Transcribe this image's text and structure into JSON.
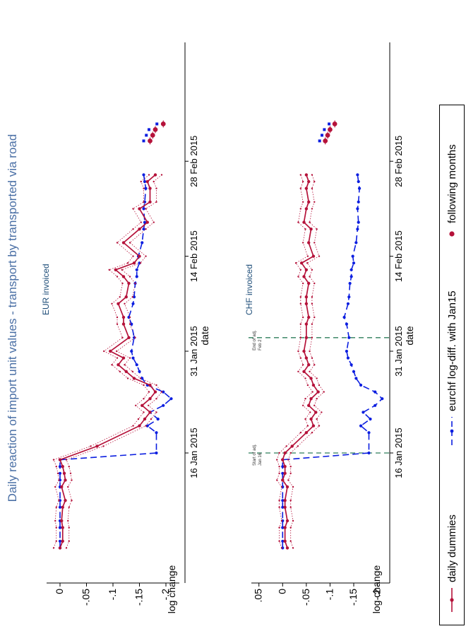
{
  "title": "Daily reaction of import unit values - transport by transported via road",
  "panels": [
    {
      "subtitle": "EUR invoiced",
      "ylabel": "log change",
      "xlabel": "date"
    },
    {
      "subtitle": "CHF invoiced",
      "ylabel": "log change",
      "xlabel": "date",
      "annotations": [
        {
          "lines": [
            "Start of adj.",
            "Jan 16"
          ]
        },
        {
          "lines": [
            "End of adj.",
            "Feb 2"
          ]
        }
      ]
    }
  ],
  "legend": {
    "daily": "daily dummies",
    "eurchf": "eurchf log-diff. with Jan15",
    "following": "following months"
  },
  "colors": {
    "daily": "#b5123a",
    "eurchf": "#0b1ee0",
    "vline": "#2e7d5b",
    "title": "#4a6fa5"
  },
  "chart_data": [
    {
      "type": "line",
      "title": "EUR invoiced",
      "xlabel": "date",
      "ylabel": "log change",
      "x_ticks": [
        "16 Jan 2015",
        "31 Jan 2015",
        "14 Feb 2015",
        "28 Feb 2015"
      ],
      "y_ticks": [
        "0",
        "-.05",
        "-.1",
        "-.15",
        "-.2"
      ],
      "ylim": [
        0.02,
        -0.22
      ],
      "x_range_days": [
        1,
        57
      ],
      "x_reference": "1 Jan 2015 = day 1",
      "series": [
        {
          "name": "daily dummies",
          "x": [
            2,
            3,
            5,
            6,
            8,
            9,
            11,
            12,
            13,
            14,
            15,
            17,
            20,
            21,
            22,
            23,
            24,
            25,
            26,
            27,
            28,
            29,
            30,
            31,
            33,
            35,
            36,
            38,
            39,
            41,
            42,
            43,
            44,
            45,
            47,
            49,
            50,
            52,
            53,
            55,
            56,
            57
          ],
          "values": [
            0.0,
            -0.005,
            -0.005,
            -0.003,
            -0.005,
            -0.01,
            -0.003,
            -0.01,
            -0.008,
            -0.005,
            0.0,
            -0.07,
            -0.15,
            -0.16,
            -0.17,
            -0.155,
            -0.17,
            -0.18,
            -0.17,
            -0.14,
            -0.125,
            -0.11,
            -0.12,
            -0.095,
            -0.13,
            -0.12,
            -0.12,
            -0.11,
            -0.125,
            -0.13,
            -0.12,
            -0.105,
            -0.14,
            -0.15,
            -0.12,
            -0.15,
            -0.165,
            -0.15,
            -0.17,
            -0.17,
            -0.165,
            -0.18
          ]
        },
        {
          "name": "eurchf log-diff. with Jan15",
          "x": [
            2,
            3,
            5,
            6,
            8,
            9,
            11,
            12,
            13,
            14,
            15,
            16,
            19,
            20,
            21,
            22,
            23,
            24,
            25,
            26,
            27,
            28,
            29,
            30,
            31,
            33,
            35,
            36,
            38,
            39,
            41,
            42,
            43,
            44,
            45,
            47,
            49,
            50,
            52,
            53,
            55,
            56,
            57
          ],
          "values": [
            0.0,
            0.0,
            0.0,
            0.0,
            0.0,
            0.0,
            0.0,
            0.0,
            0.0,
            0.0,
            0.0,
            -0.182,
            -0.182,
            -0.165,
            -0.185,
            -0.17,
            -0.195,
            -0.21,
            -0.195,
            -0.165,
            -0.155,
            -0.15,
            -0.145,
            -0.138,
            -0.135,
            -0.14,
            -0.135,
            -0.13,
            -0.138,
            -0.14,
            -0.142,
            -0.145,
            -0.145,
            -0.15,
            -0.148,
            -0.155,
            -0.158,
            -0.16,
            -0.158,
            -0.16,
            -0.162,
            -0.16,
            -0.158
          ]
        },
        {
          "name": "following months",
          "x": [
            62,
            62,
            62,
            62
          ],
          "values": [
            -0.17,
            -0.175,
            -0.18,
            -0.195
          ]
        }
      ]
    },
    {
      "type": "line",
      "title": "CHF invoiced",
      "xlabel": "date",
      "ylabel": "log change",
      "x_ticks": [
        "16 Jan 2015",
        "31 Jan 2015",
        "14 Feb 2015",
        "28 Feb 2015"
      ],
      "y_ticks": [
        ".05",
        "0",
        "-.05",
        "-.1",
        "-.15",
        "-.2"
      ],
      "ylim": [
        0.06,
        -0.22
      ],
      "x_range_days": [
        1,
        57
      ],
      "x_reference": "1 Jan 2015 = day 1",
      "series": [
        {
          "name": "daily dummies",
          "x": [
            2,
            3,
            5,
            6,
            8,
            9,
            11,
            12,
            13,
            14,
            15,
            16,
            17,
            19,
            20,
            21,
            22,
            23,
            24,
            25,
            26,
            27,
            28,
            29,
            30,
            31,
            33,
            35,
            36,
            38,
            39,
            41,
            42,
            43,
            44,
            45,
            47,
            49,
            50,
            52,
            53,
            55,
            56,
            57
          ],
          "values": [
            -0.01,
            -0.005,
            -0.005,
            -0.01,
            -0.005,
            -0.005,
            -0.01,
            0.0,
            -0.005,
            -0.005,
            0.0,
            -0.005,
            -0.02,
            -0.05,
            -0.065,
            -0.06,
            -0.07,
            -0.055,
            -0.06,
            -0.075,
            -0.065,
            -0.06,
            -0.045,
            -0.055,
            -0.05,
            -0.045,
            -0.05,
            -0.05,
            -0.055,
            -0.05,
            -0.05,
            -0.055,
            -0.045,
            -0.05,
            -0.04,
            -0.065,
            -0.055,
            -0.06,
            -0.045,
            -0.05,
            -0.055,
            -0.05,
            -0.055,
            -0.05
          ]
        },
        {
          "name": "eurchf log-diff. with Jan15",
          "x": [
            2,
            3,
            5,
            6,
            8,
            9,
            11,
            12,
            13,
            14,
            15,
            16,
            19,
            20,
            21,
            22,
            23,
            24,
            25,
            26,
            27,
            28,
            29,
            30,
            31,
            33,
            35,
            36,
            38,
            39,
            41,
            42,
            43,
            44,
            45,
            47,
            49,
            50,
            52,
            53,
            55,
            56,
            57
          ],
          "values": [
            0.0,
            0.0,
            0.0,
            0.0,
            0.0,
            0.0,
            0.0,
            0.0,
            0.0,
            0.0,
            0.0,
            -0.182,
            -0.182,
            -0.165,
            -0.185,
            -0.17,
            -0.195,
            -0.21,
            -0.195,
            -0.165,
            -0.155,
            -0.15,
            -0.145,
            -0.138,
            -0.135,
            -0.14,
            -0.135,
            -0.13,
            -0.138,
            -0.14,
            -0.142,
            -0.145,
            -0.145,
            -0.15,
            -0.148,
            -0.155,
            -0.158,
            -0.16,
            -0.158,
            -0.16,
            -0.162,
            -0.16,
            -0.158
          ]
        },
        {
          "name": "following months",
          "x": [
            62,
            62,
            62,
            62
          ],
          "values": [
            -0.09,
            -0.095,
            -0.1,
            -0.11
          ]
        }
      ]
    }
  ]
}
